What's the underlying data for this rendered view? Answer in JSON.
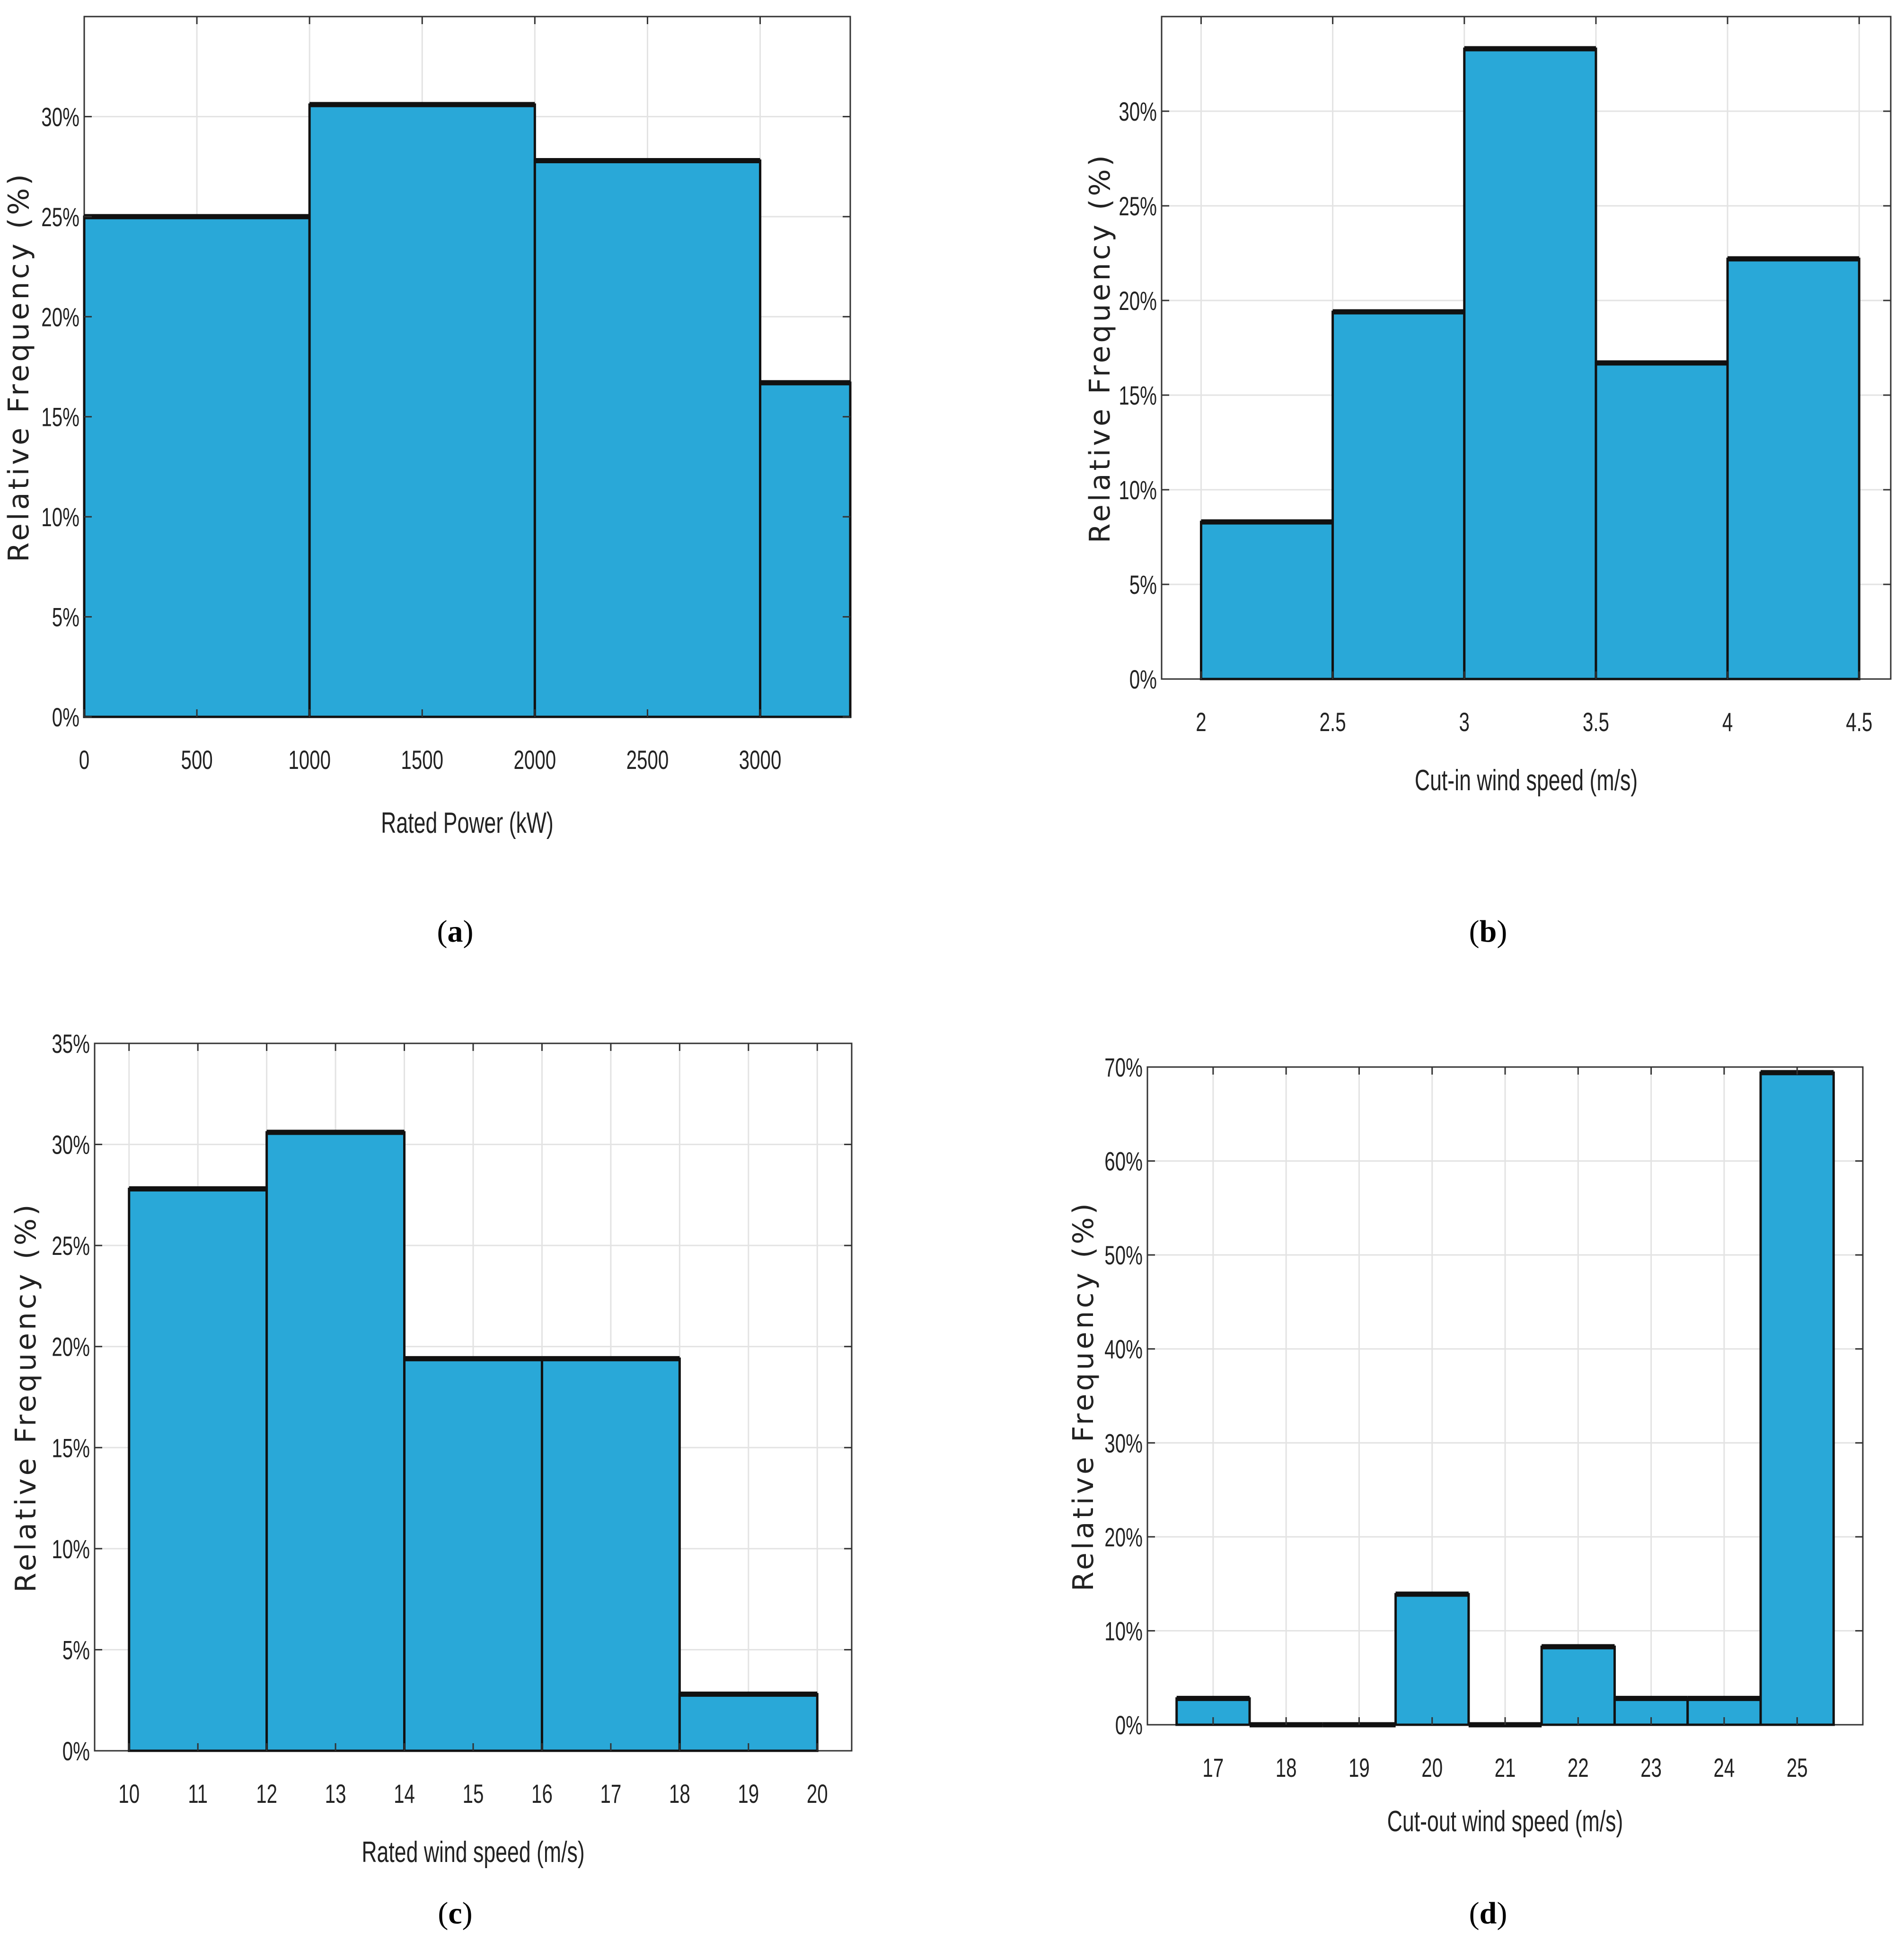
{
  "colors": {
    "bar_fill": "#29a8d8",
    "bar_edge": "#111111",
    "grid": "#e3e3e3",
    "axis": "#333333"
  },
  "chart_data": [
    {
      "id": "a",
      "type": "bar",
      "caption": "a",
      "xlabel": "Rated Power (kW)",
      "ylabel": "Relative Frequency (%)",
      "xlim": [
        0,
        3400
      ],
      "ylim": [
        0,
        35
      ],
      "xticks": [
        0,
        500,
        1000,
        1500,
        2000,
        2500,
        3000
      ],
      "xtick_labels": [
        "0",
        "500",
        "1000",
        "1500",
        "2000",
        "2500",
        "3000"
      ],
      "yticks": [
        0,
        5,
        10,
        15,
        20,
        25,
        30
      ],
      "ytick_labels": [
        "0%",
        "5%",
        "10%",
        "15%",
        "20%",
        "25%",
        "30%"
      ],
      "bins": [
        [
          0,
          1000
        ],
        [
          1000,
          2000
        ],
        [
          2000,
          3000
        ],
        [
          3000,
          3400
        ]
      ],
      "values": [
        25.0,
        30.6,
        27.8,
        16.7
      ]
    },
    {
      "id": "b",
      "type": "bar",
      "caption": "b",
      "xlabel": "Cut-in wind speed (m/s)",
      "ylabel": "Relative Frequency (%)",
      "xlim": [
        1.85,
        4.62
      ],
      "ylim": [
        0,
        35
      ],
      "xticks": [
        2,
        2.5,
        3,
        3.5,
        4,
        4.5
      ],
      "xtick_labels": [
        "2",
        "2.5",
        "3",
        "3.5",
        "4",
        "4.5"
      ],
      "yticks": [
        0,
        5,
        10,
        15,
        20,
        25,
        30
      ],
      "ytick_labels": [
        "0%",
        "5%",
        "10%",
        "15%",
        "20%",
        "25%",
        "30%"
      ],
      "bins": [
        [
          2,
          2.5
        ],
        [
          2.5,
          3
        ],
        [
          3,
          3.5
        ],
        [
          3.5,
          4
        ],
        [
          4,
          4.5
        ]
      ],
      "values": [
        8.3,
        19.4,
        33.3,
        16.7,
        22.2
      ]
    },
    {
      "id": "c",
      "type": "bar",
      "caption": "c",
      "xlabel": "Rated wind speed (m/s)",
      "ylabel": "Relative Frequency (%)",
      "xlim": [
        9.5,
        20.5
      ],
      "ylim": [
        0,
        35
      ],
      "xticks": [
        10,
        11,
        12,
        13,
        14,
        15,
        16,
        17,
        18,
        19,
        20
      ],
      "xtick_labels": [
        "10",
        "11",
        "12",
        "13",
        "14",
        "15",
        "16",
        "17",
        "18",
        "19",
        "20"
      ],
      "yticks": [
        0,
        5,
        10,
        15,
        20,
        25,
        30,
        35
      ],
      "ytick_labels": [
        "0%",
        "5%",
        "10%",
        "15%",
        "20%",
        "25%",
        "30%",
        "35%"
      ],
      "bins": [
        [
          10,
          12
        ],
        [
          12,
          14
        ],
        [
          14,
          16
        ],
        [
          16,
          18
        ],
        [
          18,
          20
        ]
      ],
      "values": [
        27.8,
        30.6,
        19.4,
        19.4,
        2.8
      ]
    },
    {
      "id": "d",
      "type": "bar",
      "caption": "d",
      "xlabel": "Cut-out wind speed (m/s)",
      "ylabel": "Relative Frequency (%)",
      "xlim": [
        16.1,
        25.9
      ],
      "ylim": [
        0,
        70
      ],
      "xticks": [
        17,
        18,
        19,
        20,
        21,
        22,
        23,
        24,
        25
      ],
      "xtick_labels": [
        "17",
        "18",
        "19",
        "20",
        "21",
        "22",
        "23",
        "24",
        "25"
      ],
      "yticks": [
        0,
        10,
        20,
        30,
        40,
        50,
        60,
        70
      ],
      "ytick_labels": [
        "0%",
        "10%",
        "20%",
        "30%",
        "40%",
        "50%",
        "60%",
        "70%"
      ],
      "bins": [
        [
          16.5,
          17.5
        ],
        [
          17.5,
          18.5
        ],
        [
          18.5,
          19.5
        ],
        [
          19.5,
          20.5
        ],
        [
          20.5,
          21.5
        ],
        [
          21.5,
          22.5
        ],
        [
          22.5,
          23.5
        ],
        [
          23.5,
          24.5
        ],
        [
          24.5,
          25.5
        ]
      ],
      "values": [
        2.8,
        0,
        0,
        13.9,
        0,
        8.3,
        2.8,
        2.8,
        69.4
      ]
    }
  ]
}
